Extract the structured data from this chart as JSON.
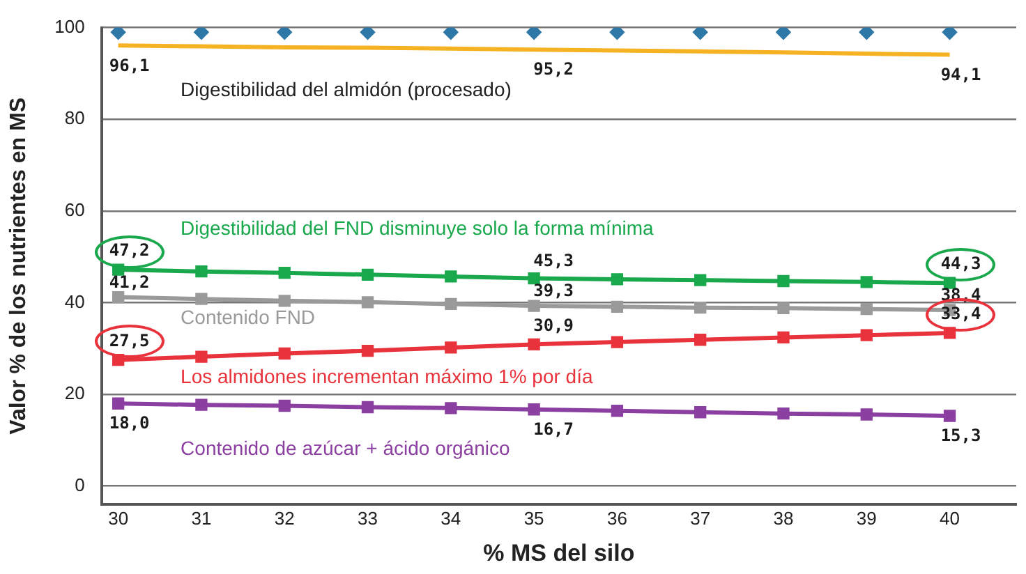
{
  "chart_data": {
    "type": "line",
    "xlabel": "% MS del silo",
    "ylabel": "Valor % de los nutrientes en MS",
    "x": [
      30,
      31,
      32,
      33,
      34,
      35,
      36,
      37,
      38,
      39,
      40
    ],
    "xlim": [
      29.8,
      40.8
    ],
    "xticks": [
      30,
      31,
      32,
      33,
      34,
      35,
      36,
      37,
      38,
      39,
      40
    ],
    "ylim": [
      -4,
      100
    ],
    "yticks": [
      0,
      20,
      40,
      60,
      80,
      100
    ],
    "grid": "y",
    "legend": false,
    "marker": "square",
    "line_style": "solid",
    "series": [
      {
        "type": "scatter",
        "marker": "diamond",
        "color": "#2e78a8",
        "values": [
          99,
          99,
          99,
          99,
          99,
          99,
          99,
          99,
          99,
          99,
          99
        ]
      },
      {
        "name": "Digestibilidad del almidón (procesado)",
        "color": "#f5b324",
        "marker": "none",
        "values": [
          96.1,
          95.9,
          95.7,
          95.6,
          95.4,
          95.2,
          95.0,
          94.8,
          94.6,
          94.3,
          94.1
        ],
        "value_labels": [
          "96,1",
          null,
          null,
          null,
          null,
          "95,2",
          null,
          null,
          null,
          null,
          "94,1"
        ]
      },
      {
        "name": "Digestibilidad del FND disminuye solo la forma mínima",
        "color": "#1aa84c",
        "values": [
          47.2,
          46.8,
          46.5,
          46.1,
          45.7,
          45.3,
          45.1,
          44.9,
          44.7,
          44.5,
          44.3
        ],
        "value_labels": [
          "47,2",
          null,
          null,
          null,
          null,
          "45,3",
          null,
          null,
          null,
          null,
          "44,3"
        ]
      },
      {
        "name": "Contenido FND",
        "color": "#9a9a9a",
        "values": [
          41.2,
          40.8,
          40.4,
          40.1,
          39.7,
          39.3,
          39.1,
          38.9,
          38.8,
          38.6,
          38.4
        ],
        "value_labels": [
          "41,2",
          null,
          null,
          null,
          null,
          "39,3",
          null,
          null,
          null,
          null,
          "38,4"
        ]
      },
      {
        "name": "Los almidones incrementan máximo 1% por día",
        "color": "#e8323c",
        "values": [
          27.5,
          28.2,
          28.9,
          29.5,
          30.2,
          30.9,
          31.4,
          31.9,
          32.4,
          32.9,
          33.4
        ],
        "value_labels": [
          "27,5",
          null,
          null,
          null,
          null,
          "30,9",
          null,
          null,
          null,
          null,
          "33,4"
        ]
      },
      {
        "name": "Contenido de azúcar + ácido orgánico",
        "color": "#8b3fa0",
        "values": [
          18.0,
          17.7,
          17.5,
          17.2,
          17.0,
          16.7,
          16.4,
          16.1,
          15.8,
          15.6,
          15.3
        ],
        "value_labels": [
          "18,0",
          null,
          null,
          null,
          null,
          "16,7",
          null,
          null,
          null,
          null,
          "15,3"
        ]
      }
    ]
  }
}
